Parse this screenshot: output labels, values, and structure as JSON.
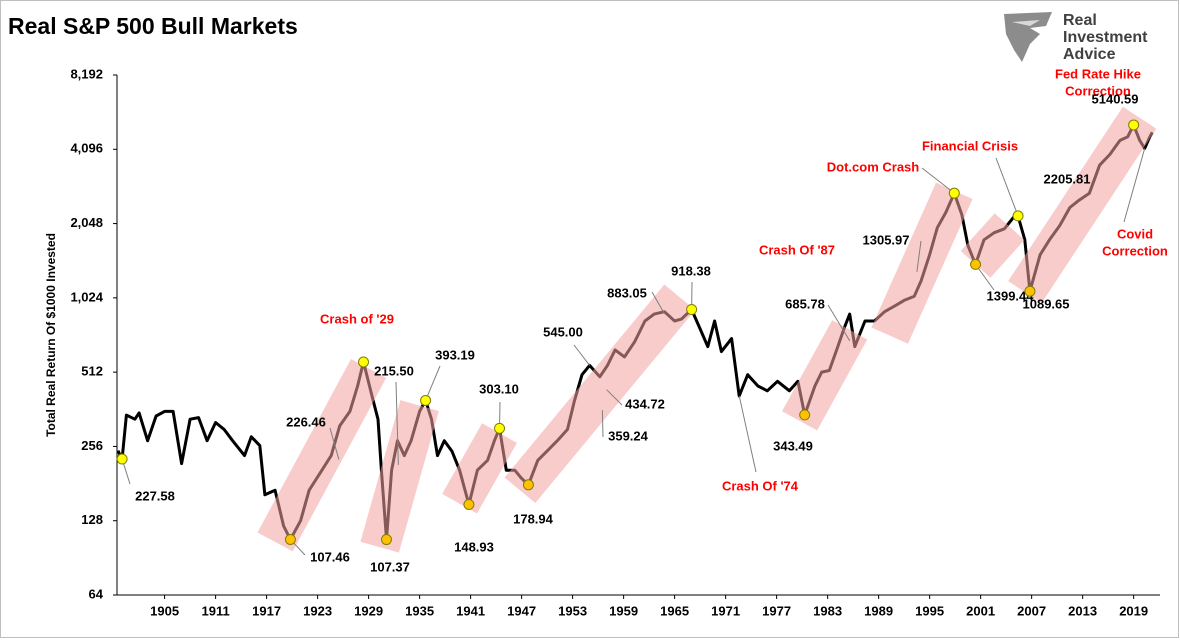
{
  "chart_data": {
    "type": "line",
    "title": "Real S&P 500 Bull Markets",
    "logo": [
      "Real",
      "Investment",
      "Advice"
    ],
    "y_label": "Total Real Return Of $1000 Invested",
    "log_scale_y": true,
    "grid": false,
    "xlim": [
      1899.4,
      2022.1
    ],
    "ylim": [
      64,
      8192
    ],
    "xticks": [
      1905,
      1911,
      1917,
      1923,
      1929,
      1935,
      1941,
      1947,
      1953,
      1959,
      1965,
      1971,
      1977,
      1983,
      1989,
      1995,
      2001,
      2007,
      2013,
      2019
    ],
    "yticks": [
      64,
      128,
      256,
      512,
      {
        "value": 1024,
        "label": "1,024"
      },
      {
        "value": 2048,
        "label": "2,048"
      },
      {
        "value": 4096,
        "label": "4,096"
      },
      {
        "value": 8192,
        "label": "8,192"
      }
    ],
    "series": [
      {
        "color": "#000000",
        "x": [
          1899.5,
          1900,
          1900.5,
          1901.5,
          1902,
          1903,
          1904,
          1905,
          1906,
          1907,
          1908,
          1909,
          1910,
          1911,
          1912,
          1913,
          1914.4,
          1915.2,
          1916.2,
          1916.8,
          1918,
          1919,
          1919.8,
          1921,
          1922,
          1923.5,
          1924.6,
          1925.6,
          1926.8,
          1927.7,
          1928.4,
          1929.4,
          1930.1,
          1930.5,
          1931.1,
          1931.7,
          1932.4,
          1933.2,
          1934,
          1935,
          1935.7,
          1936.4,
          1937.1,
          1937.9,
          1938.8,
          1939.7,
          1940.8,
          1941.8,
          1943,
          1943.8,
          1944.4,
          1945.2,
          1946.2,
          1947,
          1947.8,
          1948.9,
          1950,
          1951.2,
          1952.4,
          1953.2,
          1954.1,
          1955,
          1956.2,
          1957.1,
          1958,
          1959.1,
          1960.3,
          1961.5,
          1962.6,
          1963.8,
          1965,
          1965.8,
          1967,
          1967.9,
          1968.9,
          1969.7,
          1970.5,
          1971.7,
          1972.6,
          1973.6,
          1974.8,
          1975.9,
          1977.1,
          1978.5,
          1979.5,
          1980.3,
          1981.5,
          1982.3,
          1983.2,
          1984.2,
          1985,
          1985.6,
          1986.2,
          1987.4,
          1988.5,
          1989.7,
          1990.9,
          1992,
          1993.2,
          1994,
          1995,
          1995.9,
          1996.9,
          1997.9,
          1998.8,
          1999.5,
          2000.4,
          2001.4,
          2002.6,
          2003.8,
          2005,
          2005.4,
          2006.2,
          2006.8,
          2008,
          2009.1,
          2010.3,
          2011.5,
          2012.6,
          2013.8,
          2015,
          2016.2,
          2017.4,
          2018.3,
          2019,
          2019.7,
          2020.3,
          2020.9,
          2021.2
        ],
        "values": [
          246,
          227.58,
          343,
          330,
          350,
          270,
          340,
          355,
          355,
          218,
          330,
          335,
          270,
          320,
          300,
          270,
          235,
          280,
          258,
          163,
          170,
          122,
          107.46,
          128,
          170,
          205,
          235,
          310,
          355,
          450,
          563,
          410,
          330,
          205,
          107.37,
          205,
          270,
          235,
          270,
          355,
          393.19,
          330,
          235,
          270,
          245,
          205,
          148.93,
          205,
          225,
          270,
          303.1,
          205,
          205,
          190,
          178.94,
          225,
          245,
          270,
          300,
          390,
          500,
          545,
          490,
          545,
          630,
          590,
          680,
          825,
          880,
          900,
          825,
          840,
          918.38,
          780,
          650,
          825,
          620,
          700,
          410,
          500,
          450,
          430,
          470,
          430,
          470,
          343.49,
          450,
          512,
          520,
          650,
          780,
          880,
          650,
          825,
          825,
          900,
          950,
          1000,
          1040,
          1200,
          1530,
          1970,
          2270,
          2720,
          2220,
          1670,
          1399.44,
          1760,
          1880,
          1950,
          2200,
          2200,
          1760,
          1089.65,
          1530,
          1760,
          2010,
          2380,
          2550,
          2720,
          3530,
          3900,
          4450,
          4600,
          5140.59,
          4460,
          4130,
          4600,
          4800
        ]
      }
    ],
    "bull_markets": [
      {
        "x": [
          1918,
          1929
        ],
        "values": [
          105,
          530
        ]
      },
      {
        "x": [
          1930.3,
          1935
        ],
        "values": [
          100,
          375
        ]
      },
      {
        "x": [
          1939.7,
          1944.4
        ],
        "values": [
          150,
          290
        ]
      },
      {
        "x": [
          1946.8,
          1965.6
        ],
        "values": [
          170,
          1030
        ]
      },
      {
        "x": [
          1979.7,
          1985.6
        ],
        "values": [
          325,
          760
        ]
      },
      {
        "x": [
          1990.3,
          1997.9
        ],
        "values": [
          720,
          2780
        ]
      },
      {
        "x": [
          2000.4,
          2004.4
        ],
        "values": [
          1400,
          1990
        ]
      },
      {
        "x": [
          2006.2,
          2019.7
        ],
        "values": [
          1080,
          5500
        ]
      }
    ],
    "band_color": "#f4a3a3",
    "markers": {
      "x": [
        1900,
        1919.8,
        1928.4,
        1931.1,
        1935.7,
        1940.8,
        1944.4,
        1947.8,
        1967,
        1980.3,
        1997.9,
        2000.4,
        2005.4,
        2006.8,
        2019
      ],
      "values": [
        227.58,
        107.46,
        563,
        107.37,
        393.19,
        148.93,
        303.1,
        178.94,
        918.38,
        343.49,
        2720,
        1399.44,
        2200,
        1089.65,
        5140.59
      ],
      "colors": [
        "#ffff00",
        "#ffc000",
        "#ffff00",
        "#ffc000",
        "#ffff00",
        "#ffc000",
        "#ffff00",
        "#ffc000",
        "#ffff00",
        "#ffc000",
        "#ffff00",
        "#ffc000",
        "#ffff00",
        "#ffc000",
        "#ffff00"
      ]
    },
    "callouts": [
      {
        "text": [
          "227.58"
        ],
        "x": 1900,
        "y": 227.58,
        "color": "#000000"
      },
      {
        "text": [
          "107.46"
        ],
        "x": 1919.8,
        "y": 107.46,
        "color": "#000000"
      },
      {
        "text": [
          "226.46"
        ],
        "x": 1925.5,
        "y": 226.46,
        "color": "#000000"
      },
      {
        "text": [
          "Crash of '29"
        ],
        "x": 1928.4,
        "y": 563,
        "color": "#ff0000"
      },
      {
        "text": [
          "107.37"
        ],
        "x": 1931.1,
        "y": 107.37,
        "color": "#000000"
      },
      {
        "text": [
          "215.50"
        ],
        "x": 1932.5,
        "y": 215.5,
        "color": "#000000"
      },
      {
        "text": [
          "393.19"
        ],
        "x": 1935.7,
        "y": 393.19,
        "color": "#000000"
      },
      {
        "text": [
          "303.10"
        ],
        "x": 1944.4,
        "y": 303.1,
        "color": "#000000"
      },
      {
        "text": [
          "148.93"
        ],
        "x": 1940.8,
        "y": 148.93,
        "color": "#000000"
      },
      {
        "text": [
          "178.94"
        ],
        "x": 1947.8,
        "y": 178.94,
        "color": "#000000"
      },
      {
        "text": [
          "545.00"
        ],
        "x": 1955,
        "y": 545,
        "color": "#000000"
      },
      {
        "text": [
          "434.72"
        ],
        "x": 1957,
        "y": 434.72,
        "color": "#000000"
      },
      {
        "text": [
          "359.24"
        ],
        "x": 1956.5,
        "y": 359.24,
        "color": "#000000"
      },
      {
        "text": [
          "883.05"
        ],
        "x": 1963.8,
        "y": 883.05,
        "color": "#000000"
      },
      {
        "text": [
          "918.38"
        ],
        "x": 1967,
        "y": 918.38,
        "color": "#000000"
      },
      {
        "text": [
          "Crash Of '74"
        ],
        "x": 1972.6,
        "y": 410,
        "color": "#ff0000"
      },
      {
        "text": [
          "343.49"
        ],
        "x": 1980.3,
        "y": 343.49,
        "color": "#000000"
      },
      {
        "text": [
          "Crash Of '87"
        ],
        "x": 1985.6,
        "y": 880,
        "color": "#ff0000"
      },
      {
        "text": [
          "685.78"
        ],
        "x": 1985.6,
        "y": 685.78,
        "color": "#000000"
      },
      {
        "text": [
          "1305.97"
        ],
        "x": 1993.5,
        "y": 1305.97,
        "color": "#000000"
      },
      {
        "text": [
          "Dot.com Crash"
        ],
        "x": 1997.9,
        "y": 2720,
        "color": "#ff0000"
      },
      {
        "text": [
          "1399.44"
        ],
        "x": 2000.4,
        "y": 1399.44,
        "color": "#000000"
      },
      {
        "text": [
          "Financial Crisis"
        ],
        "x": 2005.4,
        "y": 2200,
        "color": "#ff0000"
      },
      {
        "text": [
          "1089.65"
        ],
        "x": 2006.8,
        "y": 1089.65,
        "color": "#000000"
      },
      {
        "text": [
          "2205.81"
        ],
        "x": 2011.5,
        "y": 2205.81,
        "color": "#000000"
      },
      {
        "text": [
          "Fed Rate Hike",
          "Correction"
        ],
        "x": 2019,
        "y": 5140.59,
        "color": "#ff0000"
      },
      {
        "text": [
          "5140.59"
        ],
        "x": 2019,
        "y": 5140.59,
        "color": "#000000"
      },
      {
        "text": [
          "Covid",
          "Correction"
        ],
        "x": 2020.3,
        "y": 4130,
        "color": "#ff0000"
      }
    ]
  }
}
